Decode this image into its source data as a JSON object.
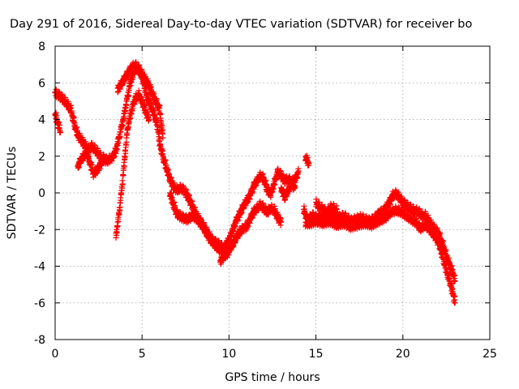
{
  "chart_data": {
    "type": "scatter",
    "title": "Day 291 of 2016, Sidereal Day-to-day VTEC variation (SDTVAR) for receiver bo",
    "xlabel": "GPS time / hours",
    "ylabel": "SDTVAR / TECUs",
    "xlim": [
      0,
      25
    ],
    "ylim": [
      -8,
      8
    ],
    "xticks": [
      0,
      5,
      10,
      15,
      20,
      25
    ],
    "yticks": [
      -8,
      -6,
      -4,
      -2,
      0,
      2,
      4,
      6,
      8
    ],
    "xtick_labels": [
      "0",
      "5",
      "10",
      "15",
      "20",
      "25"
    ],
    "ytick_labels": [
      "-8",
      "-6",
      "-4",
      "-2",
      "0",
      "2",
      "4",
      "6",
      "8"
    ],
    "grid": true,
    "marker": "+",
    "series_color": "#ff0000",
    "series": [
      {
        "segments": [
          [
            [
              0.0,
              5.5
            ],
            [
              0.3,
              5.3
            ],
            [
              0.6,
              5.0
            ],
            [
              0.9,
              4.6
            ],
            [
              1.1,
              3.8
            ],
            [
              1.3,
              3.2
            ],
            [
              1.6,
              2.8
            ],
            [
              1.9,
              2.4
            ],
            [
              2.1,
              2.6
            ],
            [
              2.4,
              2.3
            ],
            [
              2.7,
              1.9
            ],
            [
              3.0,
              1.8
            ],
            [
              3.3,
              2.0
            ],
            [
              3.5,
              2.4
            ],
            [
              3.7,
              3.2
            ],
            [
              3.9,
              4.0
            ],
            [
              4.1,
              5.0
            ],
            [
              4.3,
              6.0
            ],
            [
              4.5,
              6.6
            ],
            [
              4.7,
              6.9
            ],
            [
              4.9,
              6.6
            ],
            [
              5.1,
              6.0
            ],
            [
              5.3,
              5.2
            ],
            [
              5.5,
              4.8
            ],
            [
              5.7,
              4.3
            ],
            [
              5.9,
              3.6
            ],
            [
              6.0,
              2.8
            ],
            [
              6.2,
              2.0
            ],
            [
              6.4,
              1.4
            ],
            [
              6.6,
              0.8
            ],
            [
              6.8,
              0.4
            ],
            [
              7.0,
              0.2
            ],
            [
              7.2,
              0.3
            ],
            [
              7.4,
              0.2
            ],
            [
              7.6,
              -0.1
            ],
            [
              7.8,
              -0.5
            ],
            [
              8.0,
              -0.9
            ],
            [
              8.2,
              -1.3
            ],
            [
              8.4,
              -1.6
            ],
            [
              8.6,
              -1.9
            ],
            [
              8.8,
              -2.2
            ],
            [
              9.0,
              -2.5
            ],
            [
              9.2,
              -2.8
            ],
            [
              9.4,
              -3.0
            ],
            [
              9.6,
              -3.1
            ],
            [
              9.8,
              -2.8
            ],
            [
              10.0,
              -2.5
            ],
            [
              10.2,
              -2.0
            ],
            [
              10.4,
              -1.5
            ],
            [
              10.6,
              -1.1
            ],
            [
              10.8,
              -0.7
            ],
            [
              11.0,
              -0.4
            ],
            [
              11.2,
              -0.1
            ],
            [
              11.4,
              0.4
            ],
            [
              11.6,
              0.7
            ],
            [
              11.8,
              1.0
            ],
            [
              12.0,
              0.8
            ],
            [
              12.2,
              0.2
            ],
            [
              12.4,
              0.0
            ],
            [
              12.6,
              0.6
            ],
            [
              12.8,
              1.2
            ],
            [
              13.0,
              1.0
            ],
            [
              13.2,
              0.7
            ],
            [
              13.4,
              0.8
            ],
            [
              13.6,
              0.6
            ],
            [
              13.8,
              0.8
            ],
            [
              14.0,
              1.2
            ]
          ],
          [
            [
              3.6,
              5.7
            ],
            [
              3.8,
              6.0
            ],
            [
              4.0,
              6.3
            ],
            [
              4.2,
              6.6
            ],
            [
              4.4,
              6.9
            ],
            [
              4.6,
              7.0
            ],
            [
              4.8,
              6.8
            ],
            [
              5.0,
              6.5
            ],
            [
              5.2,
              6.2
            ],
            [
              5.4,
              5.9
            ],
            [
              5.6,
              5.4
            ],
            [
              5.8,
              5.0
            ],
            [
              6.0,
              4.6
            ],
            [
              6.1,
              3.8
            ],
            [
              6.2,
              3.0
            ]
          ],
          [
            [
              3.5,
              -2.2
            ],
            [
              3.6,
              -1.6
            ],
            [
              3.7,
              -0.8
            ],
            [
              3.8,
              0.0
            ],
            [
              3.9,
              1.0
            ],
            [
              4.0,
              2.0
            ],
            [
              4.1,
              3.0
            ],
            [
              4.2,
              3.8
            ],
            [
              4.4,
              4.6
            ],
            [
              4.6,
              5.2
            ],
            [
              4.8,
              5.4
            ],
            [
              5.0,
              5.0
            ],
            [
              5.2,
              4.5
            ],
            [
              5.4,
              4.0
            ]
          ],
          [
            [
              0.0,
              4.3
            ],
            [
              0.1,
              4.0
            ],
            [
              0.2,
              3.7
            ],
            [
              0.3,
              3.3
            ]
          ],
          [
            [
              1.3,
              1.5
            ],
            [
              1.5,
              1.9
            ],
            [
              1.8,
              2.2
            ],
            [
              2.0,
              1.7
            ],
            [
              2.2,
              1.1
            ],
            [
              2.5,
              1.4
            ],
            [
              2.8,
              2.0
            ]
          ],
          [
            [
              6.6,
              0.0
            ],
            [
              6.8,
              -0.6
            ],
            [
              7.0,
              -1.1
            ],
            [
              7.3,
              -1.3
            ],
            [
              7.6,
              -1.4
            ],
            [
              7.9,
              -1.2
            ],
            [
              8.2,
              -1.4
            ],
            [
              8.5,
              -1.8
            ],
            [
              8.8,
              -2.3
            ],
            [
              9.0,
              -2.6
            ],
            [
              9.3,
              -2.7
            ],
            [
              9.6,
              -2.9
            ],
            [
              9.8,
              -3.2
            ],
            [
              10.0,
              -3.0
            ],
            [
              10.2,
              -2.8
            ],
            [
              10.4,
              -2.4
            ],
            [
              10.6,
              -2.1
            ],
            [
              10.8,
              -1.9
            ],
            [
              11.0,
              -1.8
            ],
            [
              11.2,
              -1.4
            ],
            [
              11.4,
              -1.0
            ],
            [
              11.6,
              -0.8
            ],
            [
              11.8,
              -0.6
            ],
            [
              12.0,
              -0.8
            ],
            [
              12.2,
              -1.0
            ],
            [
              12.4,
              -0.8
            ],
            [
              12.6,
              -0.9
            ],
            [
              12.8,
              -1.3
            ],
            [
              13.0,
              -1.6
            ]
          ],
          [
            [
              9.5,
              -3.7
            ],
            [
              9.7,
              -3.4
            ],
            [
              10.0,
              -3.2
            ]
          ],
          [
            [
              13.0,
              0.3
            ],
            [
              13.2,
              -0.2
            ],
            [
              13.4,
              0.2
            ],
            [
              13.6,
              0.5
            ],
            [
              13.8,
              0.3
            ]
          ],
          [
            [
              14.4,
              2.0
            ],
            [
              14.5,
              1.8
            ],
            [
              14.6,
              1.6
            ]
          ],
          [
            [
              14.3,
              -0.9
            ],
            [
              14.5,
              -1.4
            ],
            [
              14.8,
              -1.2
            ],
            [
              15.0,
              -1.3
            ],
            [
              15.2,
              -1.3
            ],
            [
              15.5,
              -1.4
            ],
            [
              15.8,
              -1.2
            ],
            [
              16.0,
              -1.1
            ],
            [
              16.3,
              -1.3
            ],
            [
              16.6,
              -1.2
            ],
            [
              17.0,
              -1.5
            ],
            [
              17.3,
              -1.4
            ],
            [
              17.6,
              -1.3
            ],
            [
              18.0,
              -1.5
            ],
            [
              18.3,
              -1.4
            ],
            [
              18.6,
              -1.1
            ],
            [
              18.9,
              -0.9
            ],
            [
              19.2,
              -0.5
            ],
            [
              19.4,
              -0.1
            ],
            [
              19.6,
              0.0
            ],
            [
              19.8,
              -0.2
            ],
            [
              20.0,
              -0.5
            ],
            [
              20.3,
              -0.7
            ],
            [
              20.6,
              -0.9
            ],
            [
              20.9,
              -1.0
            ],
            [
              21.1,
              -1.2
            ],
            [
              21.3,
              -1.2
            ],
            [
              21.5,
              -1.5
            ],
            [
              21.7,
              -1.8
            ],
            [
              21.9,
              -2.0
            ],
            [
              22.1,
              -2.3
            ],
            [
              22.3,
              -2.8
            ],
            [
              22.5,
              -3.4
            ],
            [
              22.7,
              -3.9
            ],
            [
              22.9,
              -4.4
            ],
            [
              23.0,
              -4.8
            ]
          ],
          [
            [
              14.4,
              -1.6
            ],
            [
              14.7,
              -1.6
            ],
            [
              15.0,
              -1.5
            ],
            [
              15.4,
              -1.6
            ],
            [
              15.8,
              -1.5
            ],
            [
              16.2,
              -1.7
            ],
            [
              16.6,
              -1.6
            ],
            [
              17.0,
              -1.8
            ],
            [
              17.4,
              -1.7
            ],
            [
              17.8,
              -1.6
            ],
            [
              18.2,
              -1.7
            ],
            [
              18.6,
              -1.5
            ],
            [
              19.0,
              -1.3
            ],
            [
              19.3,
              -1.0
            ],
            [
              19.6,
              -0.9
            ],
            [
              19.9,
              -1.0
            ],
            [
              20.2,
              -1.2
            ],
            [
              20.5,
              -1.4
            ],
            [
              20.8,
              -1.6
            ],
            [
              21.0,
              -1.9
            ],
            [
              21.3,
              -1.7
            ],
            [
              21.6,
              -2.0
            ],
            [
              21.9,
              -2.4
            ],
            [
              22.1,
              -2.8
            ],
            [
              22.3,
              -3.5
            ],
            [
              22.5,
              -4.2
            ],
            [
              22.7,
              -4.8
            ],
            [
              22.9,
              -5.5
            ],
            [
              23.0,
              -6.0
            ]
          ],
          [
            [
              15.0,
              -0.5
            ],
            [
              15.3,
              -0.8
            ],
            [
              15.6,
              -1.0
            ],
            [
              15.9,
              -0.7
            ],
            [
              16.2,
              -0.9
            ]
          ]
        ]
      }
    ]
  }
}
